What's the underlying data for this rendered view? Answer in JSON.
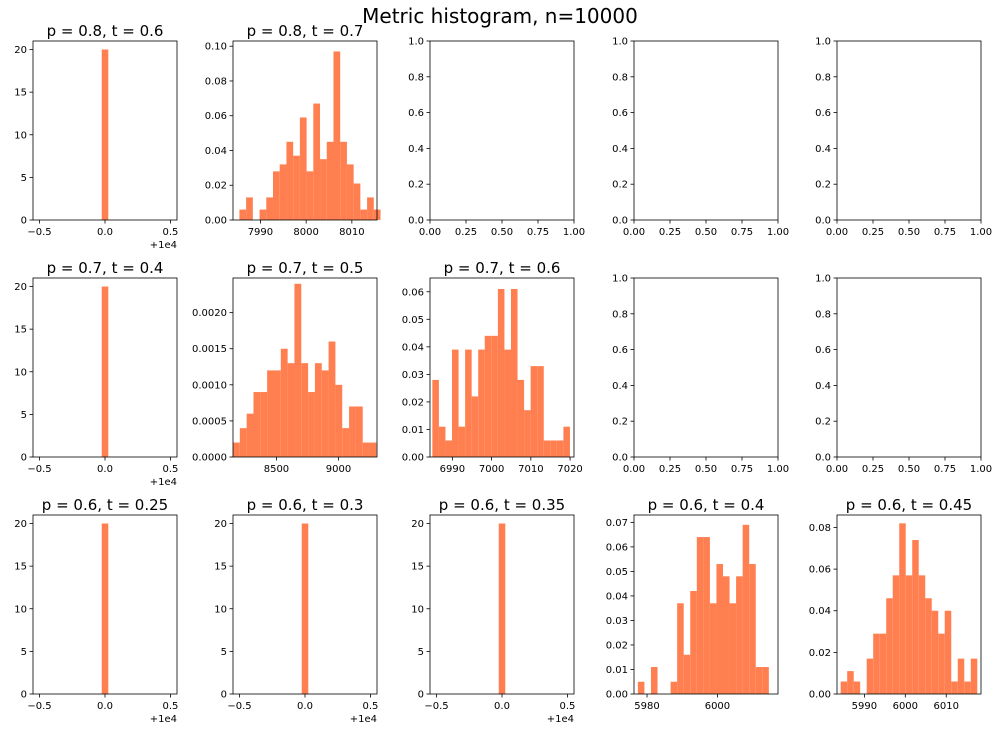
{
  "figure": {
    "suptitle": "Metric histogram, n=10000",
    "bar_color": "#ff7f50"
  },
  "chart_data": [
    {
      "type": "bar",
      "title": "p = 0.8, t = 0.6",
      "empty": false,
      "xlim": [
        -0.55,
        0.55
      ],
      "ylim": [
        0,
        21
      ],
      "xticks": [
        -0.5,
        0,
        0.5
      ],
      "xticklabels": [
        "−0.5",
        "0.0",
        "0.5"
      ],
      "yticks": [
        0,
        5,
        10,
        15,
        20
      ],
      "yticklabels": [
        "0",
        "5",
        "10",
        "15",
        "20"
      ],
      "offset_text": "+1e4",
      "bins": {
        "start": -0.025,
        "width": 0.05,
        "values": [
          20
        ]
      }
    },
    {
      "type": "bar",
      "title": "p = 0.8, t = 0.7",
      "empty": false,
      "xlim": [
        7984,
        8015.5
      ],
      "ylim": [
        0,
        0.103
      ],
      "xticks": [
        7990,
        8000,
        8010
      ],
      "xticklabels": [
        "7990",
        "8000",
        "8010"
      ],
      "yticks": [
        0,
        0.02,
        0.04,
        0.06,
        0.08,
        0.1
      ],
      "yticklabels": [
        "0.00",
        "0.02",
        "0.04",
        "0.06",
        "0.08",
        "0.10"
      ],
      "bins": {
        "start": 7985.4,
        "width": 1.47,
        "values": [
          0.006,
          0.013,
          0.0,
          0.006,
          0.013,
          0.028,
          0.032,
          0.045,
          0.037,
          0.059,
          0.028,
          0.067,
          0.035,
          0.045,
          0.097,
          0.045,
          0.032,
          0.021,
          0.006,
          0.013,
          0.006
        ]
      }
    },
    {
      "type": "bar",
      "title": "",
      "empty": true,
      "xlim": [
        0,
        1
      ],
      "ylim": [
        0,
        1
      ],
      "xticks": [
        0,
        0.25,
        0.5,
        0.75,
        1
      ],
      "xticklabels": [
        "0.00",
        "0.25",
        "0.50",
        "0.75",
        "1.00"
      ],
      "yticks": [
        0,
        0.2,
        0.4,
        0.6,
        0.8,
        1
      ],
      "yticklabels": [
        "0.0",
        "0.2",
        "0.4",
        "0.6",
        "0.8",
        "1.0"
      ],
      "bins": null
    },
    {
      "type": "bar",
      "title": "",
      "empty": true,
      "xlim": [
        0,
        1
      ],
      "ylim": [
        0,
        1
      ],
      "xticks": [
        0,
        0.25,
        0.5,
        0.75,
        1
      ],
      "xticklabels": [
        "0.00",
        "0.25",
        "0.50",
        "0.75",
        "1.00"
      ],
      "yticks": [
        0,
        0.2,
        0.4,
        0.6,
        0.8,
        1
      ],
      "yticklabels": [
        "0.0",
        "0.2",
        "0.4",
        "0.6",
        "0.8",
        "1.0"
      ],
      "bins": null
    },
    {
      "type": "bar",
      "title": "",
      "empty": true,
      "xlim": [
        0,
        1
      ],
      "ylim": [
        0,
        1
      ],
      "xticks": [
        0,
        0.25,
        0.5,
        0.75,
        1
      ],
      "xticklabels": [
        "0.00",
        "0.25",
        "0.50",
        "0.75",
        "1.00"
      ],
      "yticks": [
        0,
        0.2,
        0.4,
        0.6,
        0.8,
        1
      ],
      "yticklabels": [
        "0.0",
        "0.2",
        "0.4",
        "0.6",
        "0.8",
        "1.0"
      ],
      "bins": null
    },
    {
      "type": "bar",
      "title": "p = 0.7, t = 0.4",
      "empty": false,
      "xlim": [
        -0.55,
        0.55
      ],
      "ylim": [
        0,
        21
      ],
      "xticks": [
        -0.5,
        0,
        0.5
      ],
      "xticklabels": [
        "−0.5",
        "0.0",
        "0.5"
      ],
      "yticks": [
        0,
        5,
        10,
        15,
        20
      ],
      "yticklabels": [
        "0",
        "5",
        "10",
        "15",
        "20"
      ],
      "offset_text": "+1e4",
      "bins": {
        "start": -0.025,
        "width": 0.05,
        "values": [
          20
        ]
      }
    },
    {
      "type": "bar",
      "title": "p = 0.7, t = 0.5",
      "empty": false,
      "xlim": [
        8150,
        9310
      ],
      "ylim": [
        0,
        0.00248
      ],
      "xticks": [
        8500,
        9000
      ],
      "xticklabels": [
        "8500",
        "9000"
      ],
      "yticks": [
        0,
        0.0005,
        0.001,
        0.0015,
        0.002
      ],
      "yticklabels": [
        "0.0000",
        "0.0005",
        "0.0010",
        "0.0015",
        "0.0020"
      ],
      "bins": {
        "start": 8150,
        "width": 55,
        "values": [
          0.0002,
          0.0004,
          0.0006,
          0.0009,
          0.0009,
          0.0012,
          0.0012,
          0.0015,
          0.0013,
          0.0024,
          0.0013,
          0.0009,
          0.0013,
          0.0012,
          0.0016,
          0.001,
          0.0004,
          0.0007,
          0.0007,
          0.0002,
          0.0002
        ]
      }
    },
    {
      "type": "bar",
      "title": "p = 0.7, t = 0.6",
      "empty": false,
      "xlim": [
        6984.3,
        7021
      ],
      "ylim": [
        0,
        0.065
      ],
      "xticks": [
        6990,
        7000,
        7010,
        7020
      ],
      "xticklabels": [
        "6990",
        "7000",
        "7010",
        "7020"
      ],
      "yticks": [
        0,
        0.01,
        0.02,
        0.03,
        0.04,
        0.05,
        0.06
      ],
      "yticklabels": [
        "0.00",
        "0.01",
        "0.02",
        "0.03",
        "0.04",
        "0.05",
        "0.06"
      ],
      "bins": {
        "start": 6984.9,
        "width": 1.67,
        "values": [
          0.028,
          0.011,
          0.006,
          0.039,
          0.011,
          0.039,
          0.022,
          0.039,
          0.044,
          0.044,
          0.061,
          0.039,
          0.061,
          0.028,
          0.017,
          0.033,
          0.033,
          0.006,
          0.006,
          0.006,
          0.011
        ]
      }
    },
    {
      "type": "bar",
      "title": "",
      "empty": true,
      "xlim": [
        0,
        1
      ],
      "ylim": [
        0,
        1
      ],
      "xticks": [
        0,
        0.25,
        0.5,
        0.75,
        1
      ],
      "xticklabels": [
        "0.00",
        "0.25",
        "0.50",
        "0.75",
        "1.00"
      ],
      "yticks": [
        0,
        0.2,
        0.4,
        0.6,
        0.8,
        1
      ],
      "yticklabels": [
        "0.0",
        "0.2",
        "0.4",
        "0.6",
        "0.8",
        "1.0"
      ],
      "bins": null
    },
    {
      "type": "bar",
      "title": "",
      "empty": true,
      "xlim": [
        0,
        1
      ],
      "ylim": [
        0,
        1
      ],
      "xticks": [
        0,
        0.25,
        0.5,
        0.75,
        1
      ],
      "xticklabels": [
        "0.00",
        "0.25",
        "0.50",
        "0.75",
        "1.00"
      ],
      "yticks": [
        0,
        0.2,
        0.4,
        0.6,
        0.8,
        1
      ],
      "yticklabels": [
        "0.0",
        "0.2",
        "0.4",
        "0.6",
        "0.8",
        "1.0"
      ],
      "bins": null
    },
    {
      "type": "bar",
      "title": "p = 0.6, t = 0.25",
      "empty": false,
      "xlim": [
        -0.55,
        0.55
      ],
      "ylim": [
        0,
        21
      ],
      "xticks": [
        -0.5,
        0,
        0.5
      ],
      "xticklabels": [
        "−0.5",
        "0.0",
        "0.5"
      ],
      "yticks": [
        0,
        5,
        10,
        15,
        20
      ],
      "yticklabels": [
        "0",
        "5",
        "10",
        "15",
        "20"
      ],
      "offset_text": "+1e4",
      "bins": {
        "start": -0.025,
        "width": 0.05,
        "values": [
          20
        ]
      }
    },
    {
      "type": "bar",
      "title": "p = 0.6, t = 0.3",
      "empty": false,
      "xlim": [
        -0.55,
        0.55
      ],
      "ylim": [
        0,
        21
      ],
      "xticks": [
        -0.5,
        0,
        0.5
      ],
      "xticklabels": [
        "−0.5",
        "0.0",
        "0.5"
      ],
      "yticks": [
        0,
        5,
        10,
        15,
        20
      ],
      "yticklabels": [
        "0",
        "5",
        "10",
        "15",
        "20"
      ],
      "offset_text": "+1e4",
      "bins": {
        "start": -0.025,
        "width": 0.05,
        "values": [
          20
        ]
      }
    },
    {
      "type": "bar",
      "title": "p = 0.6, t = 0.35",
      "empty": false,
      "xlim": [
        -0.55,
        0.55
      ],
      "ylim": [
        0,
        21
      ],
      "xticks": [
        -0.5,
        0,
        0.5
      ],
      "xticklabels": [
        "−0.5",
        "0.0",
        "0.5"
      ],
      "yticks": [
        0,
        5,
        10,
        15,
        20
      ],
      "yticklabels": [
        "0",
        "5",
        "10",
        "15",
        "20"
      ],
      "offset_text": "+1e4",
      "bins": {
        "start": -0.025,
        "width": 0.05,
        "values": [
          20
        ]
      }
    },
    {
      "type": "bar",
      "title": "p = 0.6, t = 0.4",
      "empty": false,
      "xlim": [
        5976.3,
        6017.2
      ],
      "ylim": [
        0,
        0.073
      ],
      "xticks": [
        5980,
        6000
      ],
      "xticklabels": [
        "5980",
        "6000"
      ],
      "yticks": [
        0,
        0.01,
        0.02,
        0.03,
        0.04,
        0.05,
        0.06,
        0.07
      ],
      "yticklabels": [
        "0.00",
        "0.01",
        "0.02",
        "0.03",
        "0.04",
        "0.05",
        "0.06",
        "0.07"
      ],
      "bins": {
        "start": 5977.4,
        "width": 1.86,
        "values": [
          0.005,
          0.0,
          0.011,
          0.0,
          0.0,
          0.005,
          0.037,
          0.016,
          0.042,
          0.064,
          0.064,
          0.037,
          0.053,
          0.048,
          0.037,
          0.048,
          0.069,
          0.053,
          0.011,
          0.011
        ]
      }
    },
    {
      "type": "bar",
      "title": "p = 0.6, t = 0.45",
      "empty": false,
      "xlim": [
        5983.3,
        6018.5
      ],
      "ylim": [
        0,
        0.086
      ],
      "xticks": [
        5990,
        6000,
        6010
      ],
      "xticklabels": [
        "5990",
        "6000",
        "6010"
      ],
      "yticks": [
        0,
        0.02,
        0.04,
        0.06,
        0.08
      ],
      "yticklabels": [
        "0.00",
        "0.02",
        "0.04",
        "0.06",
        "0.08"
      ],
      "bins": {
        "start": 5984.2,
        "width": 1.59,
        "values": [
          0.006,
          0.011,
          0.006,
          0.0,
          0.017,
          0.029,
          0.029,
          0.046,
          0.057,
          0.082,
          0.057,
          0.074,
          0.057,
          0.046,
          0.04,
          0.029,
          0.04,
          0.006,
          0.017,
          0.006,
          0.017
        ]
      }
    }
  ]
}
